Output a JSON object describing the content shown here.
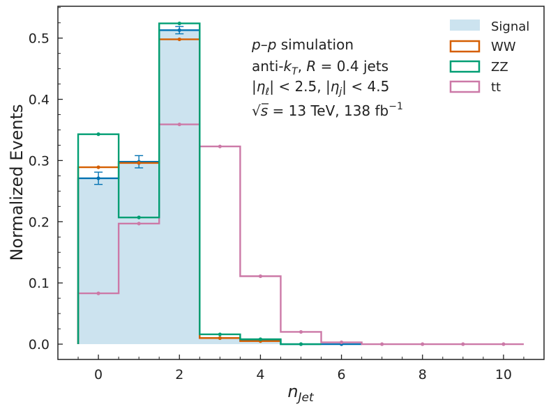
{
  "chart_data": {
    "type": "step-histogram",
    "xlabel_base": "n",
    "xlabel_sub": "Jet",
    "ylabel": "Normalized Events",
    "xlim": [
      -1,
      11
    ],
    "ylim": [
      -0.025,
      0.552
    ],
    "xticks": [
      0,
      2,
      4,
      6,
      8,
      10
    ],
    "yticks": [
      0.0,
      0.1,
      0.2,
      0.3,
      0.4,
      0.5
    ],
    "xticks_minor_step": 0.5,
    "yticks_minor_step": 0.025,
    "bin_edges": [
      -0.5,
      0.5,
      1.5,
      2.5,
      3.5,
      4.5,
      5.5,
      6.5,
      7.5,
      8.5,
      9.5,
      10.5
    ],
    "series": [
      {
        "name": "Signal",
        "style": "filled",
        "color": "#0072b2",
        "fill": "#cce3ef",
        "values": [
          0.271,
          0.298,
          0.513,
          0.01,
          0.006,
          0.0,
          0.0,
          0.0,
          0.0,
          0.0,
          0.0
        ],
        "errors": [
          0.01,
          0.01,
          0.006,
          0.001,
          0.0005,
          0.0,
          0.0,
          0.0,
          0.0,
          0.0,
          0.0
        ],
        "n_drawn_bins": 7
      },
      {
        "name": "WW",
        "style": "step",
        "color": "#d55e00",
        "values": [
          0.289,
          0.296,
          0.498,
          0.01,
          0.005,
          0.0,
          0.0,
          0.0,
          0.0,
          0.0,
          0.0
        ],
        "n_drawn_bins": 5
      },
      {
        "name": "ZZ",
        "style": "step",
        "color": "#009e73",
        "values": [
          0.343,
          0.207,
          0.524,
          0.016,
          0.008,
          0.0,
          0.0,
          0.0,
          0.0,
          0.0,
          0.0
        ],
        "n_drawn_bins": 6
      },
      {
        "name": "tt",
        "style": "step",
        "color": "#cc79a7",
        "values": [
          0.083,
          0.197,
          0.359,
          0.323,
          0.111,
          0.02,
          0.003,
          0.0,
          0.0,
          0.0,
          0.0
        ],
        "n_drawn_bins": 11
      }
    ],
    "legend_position": "top-right",
    "annotations": {
      "line1_italic_a": "p",
      "line1_mid": "–",
      "line1_italic_b": "p",
      "line1_rest": " simulation",
      "line2_pre": "anti-",
      "line2_k": "k",
      "line2_ksub": "T",
      "line2_comma": ", ",
      "line2_R": "R",
      "line2_rest": " = 0.4 jets",
      "line3_a": "|",
      "line3_eta": "η",
      "line3_lsub": "ℓ",
      "line3_b": "| < 2.5, |",
      "line3_jsub": "j",
      "line3_c": "| < 4.5",
      "line4_sqrt": "√",
      "line4_s": "s",
      "line4_rest": " = 13 TeV, 138 fb",
      "line4_sup": "−1"
    }
  }
}
